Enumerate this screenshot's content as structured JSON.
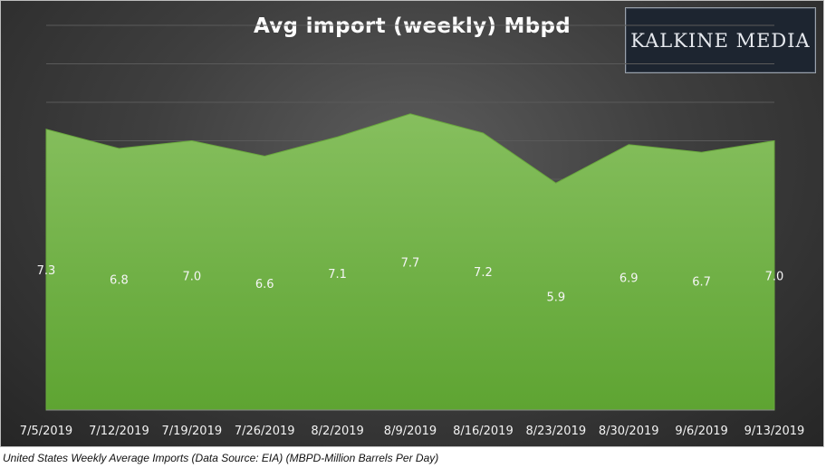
{
  "chart_data": {
    "type": "area",
    "title": "Avg import (weekly) Mbpd",
    "categories": [
      "7/5/2019",
      "7/12/2019",
      "7/19/2019",
      "7/26/2019",
      "8/2/2019",
      "8/9/2019",
      "8/16/2019",
      "8/23/2019",
      "8/30/2019",
      "9/6/2019",
      "9/13/2019"
    ],
    "series": [
      {
        "values": [
          7.3,
          6.8,
          7.0,
          6.6,
          7.1,
          7.7,
          7.2,
          5.9,
          6.9,
          6.7,
          7.0
        ],
        "color": "#70ad47"
      }
    ],
    "data_labels": [
      "7.3",
      "6.8",
      "7.0",
      "6.6",
      "7.1",
      "7.7",
      "7.2",
      "5.9",
      "6.9",
      "6.7",
      "7.0"
    ],
    "ylim": [
      0,
      10
    ],
    "grid": true,
    "legend": "none"
  },
  "logo": {
    "text": "KALKINE MEDIA"
  },
  "caption": "United States Weekly Average Imports (Data Source: EIA) (MBPD-Million Barrels Per Day)"
}
